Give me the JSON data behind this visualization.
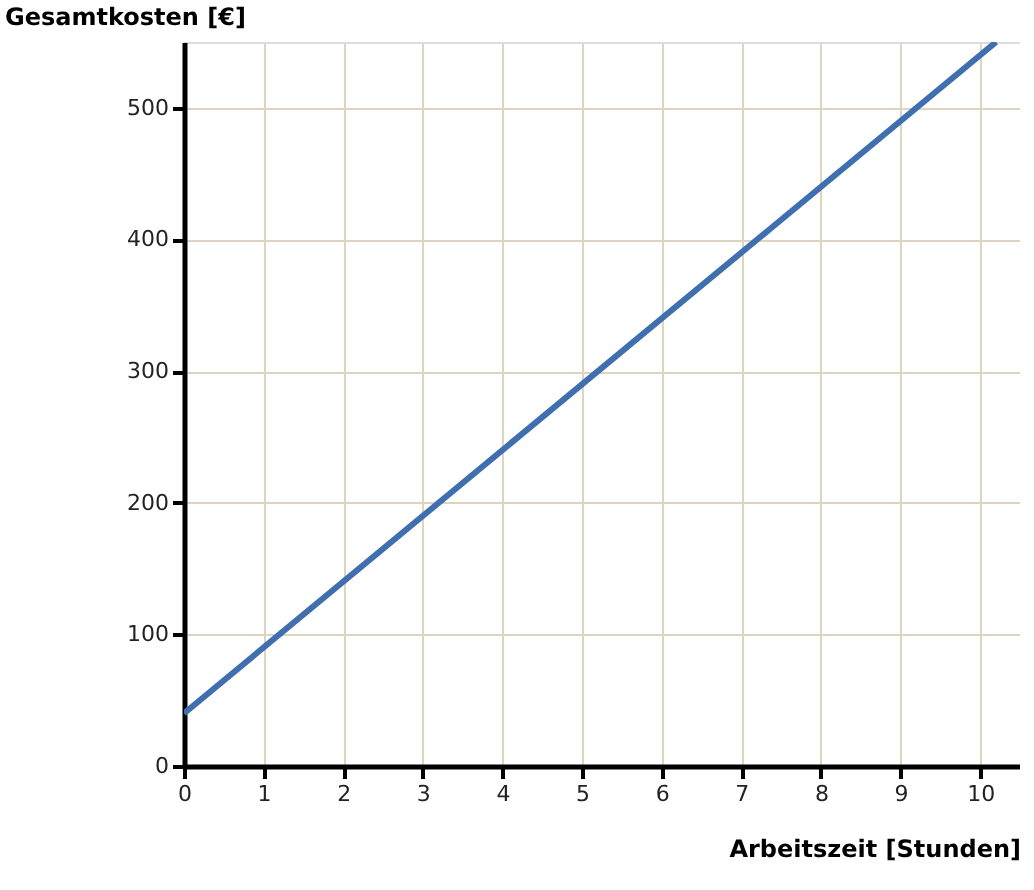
{
  "chart_data": {
    "type": "line",
    "xlabel": "Arbeitszeit [Stunden]",
    "ylabel": "Gesamtkosten [€]",
    "x": [
      0,
      10.2
    ],
    "series": [
      {
        "color": "#3f6fae",
        "values": [
          40,
          550
        ]
      }
    ],
    "xlim": [
      0,
      10.5
    ],
    "ylim": [
      0,
      550
    ],
    "xticks": [
      0,
      1,
      2,
      3,
      4,
      5,
      6,
      7,
      8,
      9,
      10
    ],
    "yticks": [
      0,
      100,
      200,
      300,
      400,
      500
    ],
    "grid": true,
    "marker": "none",
    "line_style": "solid"
  }
}
